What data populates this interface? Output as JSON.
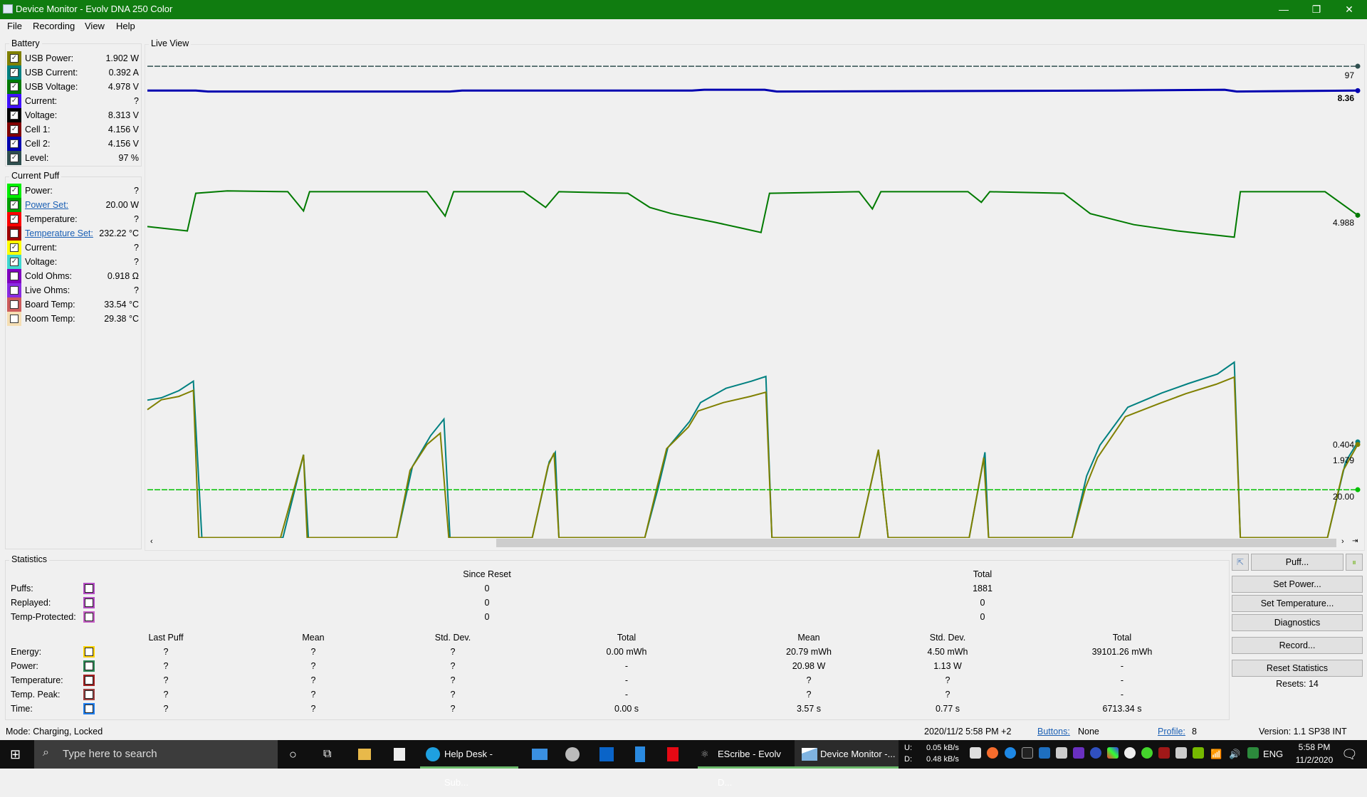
{
  "window": {
    "title": "Device Monitor - Evolv DNA 250 Color",
    "minimize": "—",
    "restore": "❐",
    "close": "✕"
  },
  "menu": [
    "File",
    "Recording",
    "View",
    "Help"
  ],
  "battery": {
    "title": "Battery",
    "items": [
      {
        "label": "USB Power:",
        "value": "1.902 W",
        "color": "#808000",
        "checked": true
      },
      {
        "label": "USB Current:",
        "value": "0.392 A",
        "color": "#008080",
        "checked": true
      },
      {
        "label": "USB Voltage:",
        "value": "4.978 V",
        "color": "#007a00",
        "checked": true
      },
      {
        "label": "Current:",
        "value": "?",
        "color": "#4010ff",
        "checked": true
      },
      {
        "label": "Voltage:",
        "value": "8.313 V",
        "color": "#000000",
        "checked": true
      },
      {
        "label": "Cell 1:",
        "value": "4.156 V",
        "color": "#800000",
        "checked": true
      },
      {
        "label": "Cell 2:",
        "value": "4.156 V",
        "color": "#0000b0",
        "checked": true
      },
      {
        "label": "Level:",
        "value": "97 %",
        "color": "#2f4f4f",
        "checked": true
      }
    ]
  },
  "puff": {
    "title": "Current Puff",
    "items": [
      {
        "label": "Power:",
        "value": "?",
        "color": "#00ee00",
        "checked": true,
        "link": false
      },
      {
        "label": "Power Set:",
        "value": "20.00 W",
        "color": "#00a000",
        "checked": true,
        "link": true
      },
      {
        "label": "Temperature:",
        "value": "?",
        "color": "#ff0000",
        "checked": true,
        "link": false
      },
      {
        "label": "Temperature Set:",
        "value": "232.22 °C",
        "color": "#a00000",
        "checked": false,
        "link": true
      },
      {
        "label": "Current:",
        "value": "?",
        "color": "#ffff00",
        "checked": true,
        "link": false
      },
      {
        "label": "Voltage:",
        "value": "?",
        "color": "#40d8d0",
        "checked": true,
        "link": false
      },
      {
        "label": "Cold Ohms:",
        "value": "0.918 Ω",
        "color": "#8000c0",
        "checked": false,
        "link": false
      },
      {
        "label": "Live Ohms:",
        "value": "?",
        "color": "#8a2be2",
        "checked": false,
        "link": false
      },
      {
        "label": "Board Temp:",
        "value": "33.54 °C",
        "color": "#cd5c5c",
        "checked": false,
        "link": false
      },
      {
        "label": "Room Temp:",
        "value": "29.38 °C",
        "color": "#f5deb3",
        "checked": false,
        "link": false
      }
    ]
  },
  "live_view": {
    "title": "Live View",
    "end_labels": {
      "level": "97",
      "voltage": "8.36",
      "usb_voltage": "4.988",
      "usb_current": "0.404",
      "usb_power": "1.979",
      "power_set": "20.00"
    },
    "series": {
      "level": {
        "color": "#2f4f4f",
        "t": [
          0,
          100
        ],
        "v": [
          97,
          97
        ]
      },
      "voltage": {
        "color": "#0000b0",
        "t": [
          0,
          4,
          5,
          25,
          26,
          45,
          46,
          51,
          52,
          80,
          89,
          90,
          100
        ],
        "v": [
          8.36,
          8.36,
          8.35,
          8.35,
          8.36,
          8.36,
          8.37,
          8.37,
          8.35,
          8.36,
          8.37,
          8.35,
          8.36
        ]
      },
      "usb_voltage": {
        "color": "#007a00",
        "t": [
          0,
          3.3,
          4.0,
          6.6,
          11.6,
          12.9,
          13.4,
          23.1,
          24.6,
          25.3,
          31.1,
          32.9,
          34.0,
          39.7,
          41.5,
          43.3,
          46.9,
          49.1,
          50.7,
          51.4,
          58.8,
          59.9,
          60.6,
          67.8,
          68.9,
          69.6,
          75.7,
          77.9,
          81.5,
          85.1,
          89.8,
          90.3,
          97.3,
          100
        ],
        "v": [
          4.959,
          4.948,
          5.044,
          5.05,
          5.048,
          4.999,
          5.048,
          5.048,
          4.986,
          5.048,
          5.048,
          5.008,
          5.048,
          5.044,
          5.008,
          4.992,
          4.97,
          4.955,
          4.944,
          5.044,
          5.048,
          5.004,
          5.048,
          5.048,
          5.021,
          5.048,
          5.044,
          4.992,
          4.964,
          4.948,
          4.932,
          5.048,
          5.048,
          4.988
        ]
      },
      "usb_current": {
        "color": "#008080",
        "t": [
          0,
          1.15,
          2.6,
          3.8,
          4.5,
          11.2,
          12.9,
          13.3,
          20.6,
          21.9,
          23.4,
          24.5,
          25.0,
          31.8,
          33.2,
          33.7,
          34.0,
          41.1,
          42.2,
          43.0,
          44.8,
          45.7,
          47.8,
          49.9,
          51.1,
          51.6,
          58.8,
          60.4,
          61.2,
          67.9,
          69.2,
          69.5,
          76.4,
          77.6,
          78.7,
          81.0,
          83.8,
          86.0,
          88.4,
          89.8,
          90.3,
          97.5,
          99.0,
          100
        ],
        "v": [
          0.58,
          0.59,
          0.62,
          0.66,
          0,
          0,
          0.35,
          0,
          0,
          0.3,
          0.43,
          0.5,
          0,
          0,
          0.32,
          0.36,
          0,
          0,
          0.21,
          0.38,
          0.49,
          0.57,
          0.63,
          0.66,
          0.68,
          0,
          0,
          0.37,
          0,
          0,
          0.36,
          0,
          0,
          0.26,
          0.39,
          0.55,
          0.61,
          0.65,
          0.69,
          0.74,
          0,
          0,
          0.32,
          0.404
        ]
      },
      "usb_power": {
        "color": "#808000",
        "t": [
          0,
          1.15,
          2.6,
          3.8,
          4.25,
          11.0,
          12.9,
          13.2,
          20.6,
          21.7,
          23.1,
          24.2,
          24.9,
          31.8,
          33.1,
          33.6,
          34.0,
          41.1,
          42.0,
          42.9,
          44.7,
          45.5,
          47.6,
          49.8,
          51.1,
          51.6,
          58.8,
          60.4,
          61.2,
          67.9,
          69.1,
          69.5,
          76.4,
          77.5,
          78.5,
          80.8,
          83.6,
          85.8,
          88.3,
          89.8,
          90.3,
          97.5,
          98.8,
          100
        ],
        "v": [
          2.72,
          2.93,
          3.0,
          3.13,
          0,
          0,
          1.76,
          0,
          0,
          1.43,
          1.98,
          2.22,
          0,
          0,
          1.52,
          1.8,
          0,
          0,
          0.96,
          1.89,
          2.35,
          2.69,
          2.87,
          3.0,
          3.09,
          0,
          0,
          1.87,
          0,
          0,
          1.7,
          0,
          0,
          1.06,
          1.7,
          2.57,
          2.85,
          3.06,
          3.26,
          3.41,
          0,
          0,
          1.43,
          1.979
        ]
      },
      "power_set": {
        "color": "#00c000",
        "t": [
          0,
          100
        ],
        "v": [
          20,
          20
        ]
      }
    }
  },
  "statistics": {
    "title": "Statistics",
    "since_reset_header": "Since Reset",
    "total_header": "Total",
    "count_rows": [
      {
        "label": "Puffs:",
        "color": "#b44cc4",
        "since": "0",
        "total": "1881"
      },
      {
        "label": "Replayed:",
        "color": "#b44cc4",
        "since": "0",
        "total": "0"
      },
      {
        "label": "Temp-Protected:",
        "color": "#c860c8",
        "since": "0",
        "total": "0"
      }
    ],
    "columns": [
      "Last Puff",
      "Mean",
      "Std. Dev.",
      "Total",
      "Mean",
      "Std. Dev.",
      "Total"
    ],
    "rows": [
      {
        "label": "Energy:",
        "color": "#ffd400",
        "cells": [
          "?",
          "?",
          "?",
          "0.00 mWh",
          "20.79 mWh",
          "4.50 mWh",
          "39101.26 mWh"
        ]
      },
      {
        "label": "Power:",
        "color": "#2e8b57",
        "cells": [
          "?",
          "?",
          "?",
          "-",
          "20.98 W",
          "1.13 W",
          "-"
        ]
      },
      {
        "label": "Temperature:",
        "color": "#a52020",
        "cells": [
          "?",
          "?",
          "?",
          "-",
          "?",
          "?",
          "-"
        ]
      },
      {
        "label": "Temp. Peak:",
        "color": "#a04040",
        "cells": [
          "?",
          "?",
          "?",
          "-",
          "?",
          "?",
          "-"
        ]
      },
      {
        "label": "Time:",
        "color": "#2080f0",
        "cells": [
          "?",
          "?",
          "?",
          "0.00 s",
          "3.57 s",
          "0.77 s",
          "6713.34 s"
        ]
      }
    ]
  },
  "actions": {
    "puff": "Puff...",
    "set_power": "Set Power...",
    "set_temperature": "Set Temperature...",
    "diagnostics": "Diagnostics",
    "record": "Record...",
    "reset_statistics": "Reset Statistics",
    "resets": "Resets: 14"
  },
  "status": {
    "mode": "Mode: Charging, Locked",
    "datetime": "2020/11/2 5:58 PM +2",
    "buttons_label": "Buttons:",
    "buttons_value": "None",
    "profile_label": "Profile:",
    "profile_value": "8",
    "version": "Version: 1.1 SP38 INT"
  },
  "taskbar": {
    "search_placeholder": "Type here to search",
    "apps": [
      "Help Desk - Sub...",
      "EScribe - Evolv D...",
      "Device Monitor -..."
    ],
    "net_up_label": "U:",
    "net_up": "0.05 kB/s",
    "net_down_label": "D:",
    "net_down": "0.48 kB/s",
    "lang": "ENG",
    "time": "5:58 PM",
    "date": "11/2/2020"
  }
}
